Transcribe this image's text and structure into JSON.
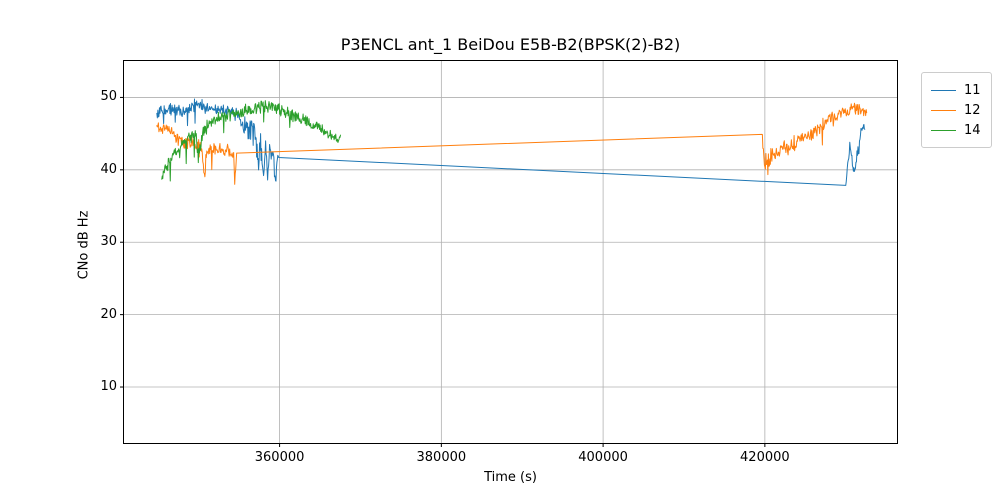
{
  "chart_data": {
    "type": "line",
    "title": "P3ENCL ant_1 BeiDou E5B-B2(BPSK(2)-B2)",
    "xlabel": "Time (s)",
    "ylabel": "CNo dB Hz",
    "xlim": [
      340700,
      436400
    ],
    "ylim": [
      2.2,
      55.1
    ],
    "x_ticks": [
      360000,
      380000,
      400000,
      420000
    ],
    "y_ticks": [
      10,
      20,
      30,
      40,
      50
    ],
    "grid": true,
    "grid_color": "#b0b0b0",
    "axes_edge_color": "#000000",
    "legend_position": "outside upper right",
    "series": [
      {
        "name": "11",
        "color": "#1f77b4",
        "points_format": [
          "time_s",
          "cno_dbhz",
          "noise_halfwidth"
        ],
        "points": [
          [
            344820,
            47.8,
            0.9
          ],
          [
            346050,
            48.2,
            0.9
          ],
          [
            347160,
            48.4,
            1.0
          ],
          [
            348150,
            48.1,
            1.0
          ],
          [
            349010,
            48.5,
            1.0
          ],
          [
            349880,
            49.1,
            1.3
          ],
          [
            350740,
            48.4,
            1.0
          ],
          [
            351730,
            48.3,
            1.0
          ],
          [
            352720,
            48.4,
            1.0
          ],
          [
            353700,
            48.0,
            1.0
          ],
          [
            354570,
            47.8,
            1.1
          ],
          [
            355430,
            46.6,
            1.8
          ],
          [
            356170,
            45.9,
            2.2
          ],
          [
            356670,
            46.0,
            2.5
          ],
          [
            357040,
            44.5,
            2.8
          ],
          [
            357400,
            40.0,
            1.5
          ],
          [
            357650,
            45.0,
            2.4
          ],
          [
            358020,
            39.2,
            1.0
          ],
          [
            358270,
            44.0,
            2.0
          ],
          [
            358520,
            38.6,
            0.8
          ],
          [
            358760,
            43.5,
            1.5
          ],
          [
            359160,
            42.5,
            2.2
          ],
          [
            359500,
            38.5,
            1.2
          ],
          [
            359780,
            42.0,
            1.0
          ],
          [
            359900,
            41.7,
            0
          ],
          [
            430000,
            37.85,
            0
          ],
          [
            430250,
            41.0,
            1.3
          ],
          [
            430500,
            43.8,
            1.3
          ],
          [
            430700,
            42.0,
            1.5
          ],
          [
            430950,
            39.8,
            1.2
          ],
          [
            431200,
            40.2,
            1.2
          ],
          [
            431450,
            42.0,
            1.4
          ],
          [
            431700,
            44.0,
            1.3
          ],
          [
            431950,
            45.6,
            1.0
          ],
          [
            432200,
            46.2,
            0.8
          ],
          [
            432350,
            45.6,
            0.6
          ]
        ]
      },
      {
        "name": "12",
        "color": "#ff7f0e",
        "points_format": [
          "time_s",
          "cno_dbhz",
          "noise_halfwidth"
        ],
        "points": [
          [
            344820,
            46.1,
            0.8
          ],
          [
            346050,
            45.6,
            1.0
          ],
          [
            346790,
            45.0,
            1.1
          ],
          [
            347530,
            44.2,
            1.3
          ],
          [
            348270,
            43.7,
            1.2
          ],
          [
            349010,
            43.4,
            1.2
          ],
          [
            349750,
            43.2,
            1.3
          ],
          [
            350370,
            42.9,
            1.4
          ],
          [
            350700,
            39.5,
            1.6
          ],
          [
            351000,
            42.6,
            1.3
          ],
          [
            351480,
            42.8,
            1.1
          ],
          [
            352220,
            42.7,
            1.1
          ],
          [
            352960,
            42.6,
            1.2
          ],
          [
            353700,
            42.5,
            1.1
          ],
          [
            354320,
            42.4,
            0.9
          ],
          [
            354450,
            38.0,
            1.5
          ],
          [
            354690,
            42.3,
            0
          ],
          [
            419630,
            44.9,
            0
          ],
          [
            419880,
            41.8,
            2.0
          ],
          [
            420250,
            40.8,
            2.2
          ],
          [
            420620,
            41.5,
            1.8
          ],
          [
            421110,
            42.0,
            1.4
          ],
          [
            421730,
            42.4,
            1.3
          ],
          [
            422470,
            42.9,
            1.3
          ],
          [
            423210,
            43.2,
            1.4
          ],
          [
            423950,
            44.0,
            1.3
          ],
          [
            424690,
            44.4,
            1.2
          ],
          [
            425430,
            44.6,
            1.2
          ],
          [
            426170,
            45.1,
            1.1
          ],
          [
            426910,
            46.1,
            1.2
          ],
          [
            427650,
            46.9,
            1.1
          ],
          [
            428390,
            47.4,
            1.0
          ],
          [
            429130,
            47.7,
            1.0
          ],
          [
            429870,
            47.9,
            1.0
          ],
          [
            430610,
            48.3,
            1.1
          ],
          [
            431350,
            48.2,
            1.0
          ],
          [
            431970,
            48.2,
            0.9
          ],
          [
            432590,
            47.9,
            0.8
          ]
        ]
      },
      {
        "name": "14",
        "color": "#2ca02c",
        "points_format": [
          "time_s",
          "cno_dbhz",
          "noise_halfwidth"
        ],
        "points": [
          [
            345430,
            38.7,
            0.6
          ],
          [
            345930,
            40.2,
            1.0
          ],
          [
            346420,
            41.0,
            1.1
          ],
          [
            347040,
            42.3,
            1.1
          ],
          [
            347780,
            43.3,
            1.1
          ],
          [
            348520,
            43.9,
            1.1
          ],
          [
            349260,
            44.6,
            1.2
          ],
          [
            349700,
            45.0,
            1.3
          ],
          [
            349950,
            41.0,
            2.2
          ],
          [
            350490,
            45.2,
            1.3
          ],
          [
            351230,
            46.2,
            1.1
          ],
          [
            352100,
            46.9,
            1.0
          ],
          [
            352960,
            47.3,
            1.0
          ],
          [
            353950,
            47.6,
            1.0
          ],
          [
            354940,
            47.9,
            1.0
          ],
          [
            355920,
            48.2,
            1.0
          ],
          [
            356910,
            48.5,
            1.0
          ],
          [
            357900,
            48.8,
            1.1
          ],
          [
            358890,
            48.6,
            1.0
          ],
          [
            359880,
            48.4,
            1.0
          ],
          [
            360860,
            47.9,
            1.0
          ],
          [
            361850,
            47.4,
            1.0
          ],
          [
            362840,
            47.0,
            1.0
          ],
          [
            363830,
            46.4,
            1.0
          ],
          [
            364810,
            45.9,
            1.0
          ],
          [
            365800,
            45.2,
            0.9
          ],
          [
            366670,
            44.6,
            0.9
          ],
          [
            367280,
            44.0,
            0.8
          ],
          [
            367530,
            44.8,
            0.4
          ]
        ]
      }
    ]
  }
}
